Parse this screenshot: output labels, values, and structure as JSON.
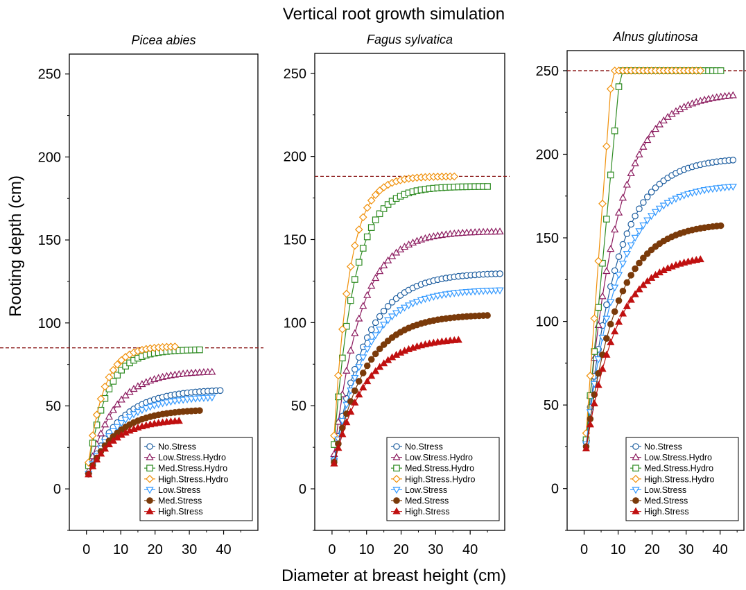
{
  "title": "Vertical root growth simulation",
  "xlabel": "Diameter at breast height (cm)",
  "ylabel": "Rooting depth (cm)",
  "series_styles": [
    {
      "name": "No.Stress",
      "color": "#1f5fa0",
      "marker": "circle-open"
    },
    {
      "name": "Low.Stress.Hydro",
      "color": "#8b1a5e",
      "marker": "triangle-up-open"
    },
    {
      "name": "Med.Stress.Hydro",
      "color": "#2e8b22",
      "marker": "square-open"
    },
    {
      "name": "High.Stress.Hydro",
      "color": "#f0900a",
      "marker": "diamond-open"
    },
    {
      "name": "Low.Stress",
      "color": "#3399ff",
      "marker": "triangle-down-open"
    },
    {
      "name": "Med.Stress",
      "color": "#7a3a0a",
      "marker": "circle-filled"
    },
    {
      "name": "High.Stress",
      "color": "#c01010",
      "marker": "triangle-up-filled"
    }
  ],
  "chart_data": [
    {
      "type": "line",
      "title": "Picea abies",
      "xlim": [
        -5,
        50
      ],
      "ylim": [
        -25,
        262
      ],
      "xticks": [
        0,
        10,
        20,
        30,
        40
      ],
      "yticks": [
        0,
        50,
        100,
        150,
        200,
        250
      ],
      "reference_line": 85,
      "legend_position": "bottom-right",
      "series": [
        {
          "name": "No.Stress",
          "xmax": 39,
          "ymax": 60,
          "k": 0.11,
          "y0": 6
        },
        {
          "name": "Low.Stress.Hydro",
          "xmax": 37,
          "ymax": 71,
          "k": 0.13,
          "y0": 6
        },
        {
          "name": "Med.Stress.Hydro",
          "xmax": 33,
          "ymax": 84,
          "k": 0.18,
          "y0": 6
        },
        {
          "name": "High.Stress.Hydro",
          "xmax": 26,
          "ymax": 86,
          "k": 0.22,
          "y0": 6
        },
        {
          "name": "Low.Stress",
          "xmax": 37,
          "ymax": 56,
          "k": 0.11,
          "y0": 6
        },
        {
          "name": "Med.Stress",
          "xmax": 34,
          "ymax": 48,
          "k": 0.12,
          "y0": 6
        },
        {
          "name": "High.Stress",
          "xmax": 28,
          "ymax": 42,
          "k": 0.13,
          "y0": 6
        }
      ]
    },
    {
      "type": "line",
      "title": "Fagus sylvatica",
      "xlim": [
        -5,
        50
      ],
      "ylim": [
        -25,
        262
      ],
      "xticks": [
        0,
        10,
        20,
        30,
        40
      ],
      "yticks": [
        0,
        50,
        100,
        150,
        200,
        250
      ],
      "reference_line": 188,
      "legend_position": "bottom-right",
      "series": [
        {
          "name": "No.Stress",
          "xmax": 49,
          "ymax": 130,
          "k": 0.11,
          "y0": 10
        },
        {
          "name": "Low.Stress.Hydro",
          "xmax": 49,
          "ymax": 155,
          "k": 0.13,
          "y0": 10
        },
        {
          "name": "Med.Stress.Hydro",
          "xmax": 45,
          "ymax": 182,
          "k": 0.17,
          "y0": 10
        },
        {
          "name": "High.Stress.Hydro",
          "xmax": 36,
          "ymax": 188,
          "k": 0.22,
          "y0": 10
        },
        {
          "name": "Low.Stress",
          "xmax": 49,
          "ymax": 120,
          "k": 0.11,
          "y0": 10
        },
        {
          "name": "Med.Stress",
          "xmax": 46,
          "ymax": 105,
          "k": 0.11,
          "y0": 10
        },
        {
          "name": "High.Stress",
          "xmax": 37,
          "ymax": 91,
          "k": 0.11,
          "y0": 10
        }
      ]
    },
    {
      "type": "line",
      "title": "Alnus glutinosa",
      "xlim": [
        -5,
        47
      ],
      "ylim": [
        -25,
        262
      ],
      "xticks": [
        0,
        10,
        20,
        30,
        40
      ],
      "yticks": [
        0,
        50,
        100,
        150,
        200,
        250
      ],
      "reference_line": 250,
      "legend_position": "bottom-right",
      "series": [
        {
          "name": "No.Stress",
          "xmax": 44,
          "ymax": 198,
          "k": 0.11,
          "y0": 16
        },
        {
          "name": "Low.Stress.Hydro",
          "xmax": 44,
          "ymax": 237,
          "k": 0.11,
          "y0": 16
        },
        {
          "name": "Med.Stress.Hydro",
          "xmax": 41,
          "ymax": 250,
          "k": 0.2,
          "y0": 16
        },
        {
          "name": "High.Stress.Hydro",
          "xmax": 35,
          "ymax": 250,
          "k": 0.26,
          "y0": 16
        },
        {
          "name": "Low.Stress",
          "xmax": 44,
          "ymax": 182,
          "k": 0.11,
          "y0": 16
        },
        {
          "name": "Med.Stress",
          "xmax": 41,
          "ymax": 159,
          "k": 0.11,
          "y0": 16
        },
        {
          "name": "High.Stress",
          "xmax": 35,
          "ymax": 140,
          "k": 0.11,
          "y0": 16
        }
      ]
    }
  ]
}
